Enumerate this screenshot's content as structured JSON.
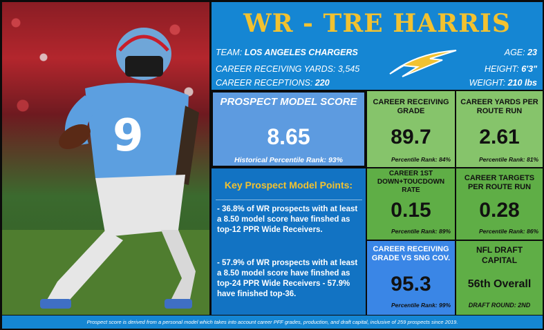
{
  "title": "WR - TRE HARRIS",
  "header": {
    "team_label": "TEAM:",
    "team": "LOS ANGELES CHARGERS",
    "career_receiving_yards_label": "CAREER RECEIVING YARDS:",
    "career_receiving_yards": "3,545",
    "career_receptions_label": "CAREER RECEPTIONS:",
    "career_receptions": "220",
    "age_label": "AGE:",
    "age": "23",
    "height_label": "HEIGHT:",
    "height": "6'3\"",
    "weight_label": "WEIGHT:",
    "weight": "210 lbs",
    "logo": "chargers-bolt-logo",
    "logo_colors": {
      "blue": "#0f7fd2",
      "gold": "#f2c230"
    }
  },
  "player_photo": {
    "jersey_number": "9"
  },
  "prospect_model": {
    "label": "PROSPECT MODEL SCORE",
    "score": "8.65",
    "historical_rank": "Historical Percentile Rank: 93%"
  },
  "key_points": {
    "heading": "Key Prospect Model Points:",
    "points": [
      "- 36.8% of WR prospects with at least a 8.50 model score have finshed as top-12 PPR Wide Receivers.",
      "- 57.9% of WR prospects with at least a 8.50 model score have finshed as top-24 PPR Wide Receivers - 57.9% have finished top-36."
    ]
  },
  "stats": {
    "career_receiving_grade": {
      "label": "CAREER RECEIVING GRADE",
      "value": "89.7",
      "rank": "Percentile Rank: 84%"
    },
    "yards_per_route": {
      "label": "CAREER YARDS PER ROUTE RUN",
      "value": "2.61",
      "rank": "Percentile Rank: 81%"
    },
    "first_down_td_rate": {
      "label": "CAREER 1ST DOWN+TOUCDOWN RATE",
      "value": "0.15",
      "rank": "Percentile Rank: 89%"
    },
    "targets_per_route": {
      "label": "CAREER TARGETS PER ROUTE RUN",
      "value": "0.28",
      "rank": "Percentile Rank: 86%"
    },
    "grade_vs_sng": {
      "label": "CAREER RECEIVING GRADE vs SNG COV.",
      "value": "95.3",
      "rank": "Percentile Rank: 99%"
    },
    "draft_capital": {
      "label": "NFL DRAFT CAPITAL",
      "value": "56th Overall",
      "round": "DRAFT ROUND: 2ND"
    }
  },
  "footer": "Prospect score is derived from a personal model which takes into account career PFF grades, production, and draft capital, inclusive of 259 prospects since 2019.",
  "colors": {
    "header_blue": "#1586d3",
    "title_gold": "#f2c230",
    "panel_green_light": "#86c46b",
    "panel_green_dark": "#5fae46",
    "score_blue": "#5d9be0",
    "key_points_blue": "#1273c3"
  }
}
